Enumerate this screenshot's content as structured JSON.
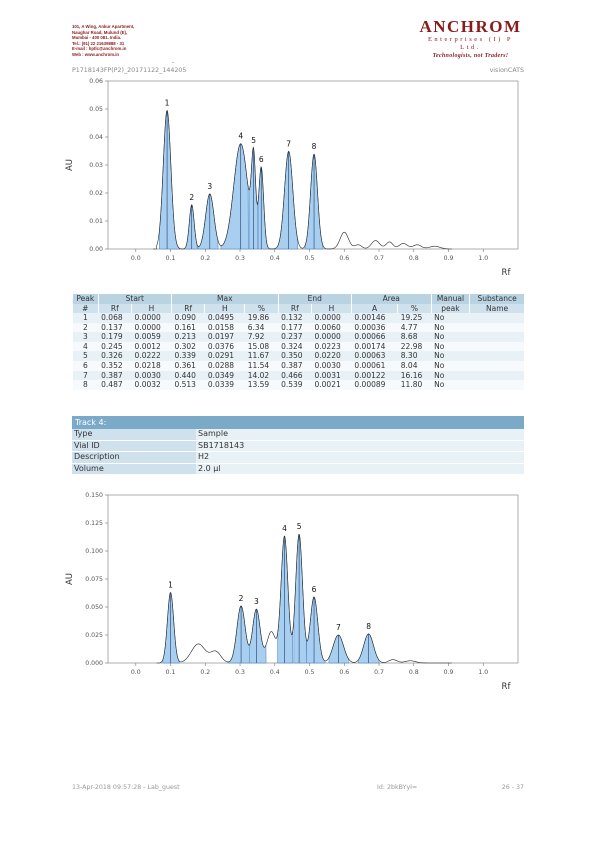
{
  "header": {
    "address_lines": [
      "101, A Wing, Ankur Apartment,",
      "Naughar Road, Mulund (E),",
      "Mumbai - 400 081. India.",
      "Tel.: (91) 22 21639888 - 31",
      "E-mail : hptlc@anchrom.in",
      "Web : www.anchrom.in"
    ],
    "logo_brand": "ANCHROM",
    "logo_sub": "Enterprises (I) P Ltd.",
    "logo_tagline": "Technologists, not Traders!",
    "doc_id": "P1718143FP(P2)_20171122_144205",
    "app_name": "visionCATS",
    "dash": "-"
  },
  "chart_data": [
    {
      "type": "line",
      "xlabel": "Rf",
      "ylabel": "AU",
      "xlim": [
        -0.08,
        1.1
      ],
      "ylim": [
        0,
        0.06
      ],
      "xticks": [
        0.0,
        0.1,
        0.2,
        0.3,
        0.4,
        0.5,
        0.6,
        0.7,
        0.8,
        0.9,
        1.0
      ],
      "yticks": [
        0.0,
        0.01,
        0.02,
        0.03,
        0.04,
        0.05,
        0.06
      ],
      "xtick_labels": [
        "0.0",
        "0.1",
        "0.2",
        "0.3",
        "0.4",
        "0.5",
        "0.6",
        "0.7",
        "0.8",
        "0.9",
        "1.0"
      ],
      "ytick_labels": [
        "0.00",
        "0.01",
        "0.02",
        "0.03",
        "0.04",
        "0.05",
        "0.06"
      ],
      "peaks": [
        {
          "label": "1",
          "rf": 0.09,
          "h": 0.0495,
          "start": 0.068,
          "end": 0.132,
          "w": 0.011
        },
        {
          "label": "2",
          "rf": 0.161,
          "h": 0.0158,
          "start": 0.137,
          "end": 0.177,
          "w": 0.007
        },
        {
          "label": "3",
          "rf": 0.213,
          "h": 0.0197,
          "start": 0.179,
          "end": 0.237,
          "w": 0.012
        },
        {
          "label": "4",
          "rf": 0.302,
          "h": 0.0376,
          "start": 0.245,
          "end": 0.324,
          "w": 0.02
        },
        {
          "label": "5",
          "rf": 0.339,
          "h": 0.0291,
          "start": 0.326,
          "end": 0.35,
          "w": 0.006
        },
        {
          "label": "6",
          "rf": 0.361,
          "h": 0.0288,
          "start": 0.352,
          "end": 0.387,
          "w": 0.007
        },
        {
          "label": "7",
          "rf": 0.44,
          "h": 0.0349,
          "start": 0.387,
          "end": 0.466,
          "w": 0.012
        },
        {
          "label": "8",
          "rf": 0.513,
          "h": 0.0339,
          "start": 0.487,
          "end": 0.539,
          "w": 0.01
        }
      ],
      "baseline_noise": [
        {
          "rf": 0.6,
          "h": 0.006,
          "w": 0.012
        },
        {
          "rf": 0.64,
          "h": 0.0015,
          "w": 0.01
        },
        {
          "rf": 0.69,
          "h": 0.003,
          "w": 0.012
        },
        {
          "rf": 0.73,
          "h": 0.0025,
          "w": 0.01
        },
        {
          "rf": 0.77,
          "h": 0.002,
          "w": 0.012
        },
        {
          "rf": 0.81,
          "h": 0.0015,
          "w": 0.012
        },
        {
          "rf": 0.86,
          "h": 0.001,
          "w": 0.015
        }
      ],
      "start_rf": 0.06,
      "end_rf": 0.9
    },
    {
      "type": "line",
      "xlabel": "Rf",
      "ylabel": "AU",
      "xlim": [
        -0.08,
        1.1
      ],
      "ylim": [
        0,
        0.15
      ],
      "xticks": [
        0.0,
        0.1,
        0.2,
        0.3,
        0.4,
        0.5,
        0.6,
        0.7,
        0.8,
        0.9,
        1.0
      ],
      "yticks": [
        0.0,
        0.025,
        0.05,
        0.075,
        0.1,
        0.125,
        0.15
      ],
      "xtick_labels": [
        "0.0",
        "0.1",
        "0.2",
        "0.3",
        "0.4",
        "0.5",
        "0.6",
        "0.7",
        "0.8",
        "0.9",
        "1.0"
      ],
      "ytick_labels": [
        "0.000",
        "0.025",
        "0.050",
        "0.075",
        "0.100",
        "0.125",
        "0.150"
      ],
      "peaks": [
        {
          "label": "1",
          "rf": 0.1,
          "h": 0.063,
          "start": 0.078,
          "end": 0.125,
          "w": 0.009
        },
        {
          "label": "2",
          "rf": 0.303,
          "h": 0.051,
          "start": 0.265,
          "end": 0.328,
          "w": 0.012
        },
        {
          "label": "3",
          "rf": 0.347,
          "h": 0.048,
          "start": 0.328,
          "end": 0.375,
          "w": 0.011
        },
        {
          "label": "4",
          "rf": 0.428,
          "h": 0.113,
          "start": 0.408,
          "end": 0.452,
          "w": 0.01
        },
        {
          "label": "5",
          "rf": 0.47,
          "h": 0.115,
          "start": 0.455,
          "end": 0.492,
          "w": 0.01
        },
        {
          "label": "6",
          "rf": 0.513,
          "h": 0.059,
          "start": 0.492,
          "end": 0.545,
          "w": 0.011
        },
        {
          "label": "7",
          "rf": 0.583,
          "h": 0.025,
          "start": 0.556,
          "end": 0.612,
          "w": 0.015
        },
        {
          "label": "8",
          "rf": 0.67,
          "h": 0.026,
          "start": 0.64,
          "end": 0.7,
          "w": 0.014
        }
      ],
      "baseline_noise": [
        {
          "rf": 0.18,
          "h": 0.017,
          "w": 0.02
        },
        {
          "rf": 0.23,
          "h": 0.01,
          "w": 0.015
        },
        {
          "rf": 0.39,
          "h": 0.028,
          "w": 0.013
        },
        {
          "rf": 0.74,
          "h": 0.003,
          "w": 0.012
        },
        {
          "rf": 0.79,
          "h": 0.002,
          "w": 0.015
        }
      ],
      "start_rf": 0.07,
      "end_rf": 0.9
    }
  ],
  "peak_table": {
    "group_headers": [
      "Peak",
      "Start",
      "Max",
      "End",
      "Area",
      "Manual",
      "Substance"
    ],
    "sub_headers": [
      "#",
      "Rf",
      "H",
      "Rf",
      "H",
      "%",
      "Rf",
      "H",
      "A",
      "%",
      "peak",
      "Name"
    ],
    "rows": [
      [
        "1",
        "0.068",
        "0.0000",
        "0.090",
        "0.0495",
        "19.86",
        "0.132",
        "0.0000",
        "0.00146",
        "19.25",
        "No",
        ""
      ],
      [
        "2",
        "0.137",
        "0.0000",
        "0.161",
        "0.0158",
        "6.34",
        "0.177",
        "0.0060",
        "0.00036",
        "4.77",
        "No",
        ""
      ],
      [
        "3",
        "0.179",
        "0.0059",
        "0.213",
        "0.0197",
        "7.92",
        "0.237",
        "0.0000",
        "0.00066",
        "8.68",
        "No",
        ""
      ],
      [
        "4",
        "0.245",
        "0.0012",
        "0.302",
        "0.0376",
        "15.08",
        "0.324",
        "0.0223",
        "0.00174",
        "22.98",
        "No",
        ""
      ],
      [
        "5",
        "0.326",
        "0.0222",
        "0.339",
        "0.0291",
        "11.67",
        "0.350",
        "0.0220",
        "0.00063",
        "8.30",
        "No",
        ""
      ],
      [
        "6",
        "0.352",
        "0.0218",
        "0.361",
        "0.0288",
        "11.54",
        "0.387",
        "0.0030",
        "0.00061",
        "8.04",
        "No",
        ""
      ],
      [
        "7",
        "0.387",
        "0.0030",
        "0.440",
        "0.0349",
        "14.02",
        "0.466",
        "0.0031",
        "0.00122",
        "16.16",
        "No",
        ""
      ],
      [
        "8",
        "0.487",
        "0.0032",
        "0.513",
        "0.0339",
        "13.59",
        "0.539",
        "0.0021",
        "0.00089",
        "11.80",
        "No",
        ""
      ]
    ]
  },
  "track": {
    "title": "Track 4:",
    "fields": [
      {
        "key": "Type",
        "value": "Sample"
      },
      {
        "key": "Vial ID",
        "value": "SB1718143"
      },
      {
        "key": "Description",
        "value": "H2"
      },
      {
        "key": "Volume",
        "value": "2.0 µl"
      }
    ]
  },
  "footer": {
    "timestamp": "13-Apr-2018 09:57:28 - Lab_guest",
    "id": "Id: 2bkBYyI=",
    "page": "26 - 37"
  },
  "colors": {
    "fill": "#a9cff0",
    "fill_stroke": "#3d7fc4",
    "curve": "#222222",
    "frame": "#9a9a9a",
    "brand": "#8b1a1a"
  }
}
